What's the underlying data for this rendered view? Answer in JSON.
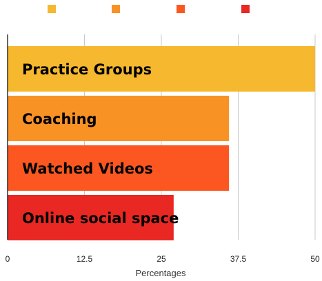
{
  "chart_data": {
    "type": "bar",
    "orientation": "horizontal",
    "categories": [
      "Practice Groups",
      "Coaching",
      "Watched Videos",
      "Online social space"
    ],
    "values": [
      50,
      36,
      36,
      27
    ],
    "colors": [
      "#F5B82E",
      "#F99225",
      "#FC5721",
      "#EA2823"
    ],
    "xlabel": "Percentages",
    "ylabel": "",
    "xlim": [
      0,
      50
    ],
    "xticks": [
      0,
      12.5,
      25,
      37.5,
      50
    ],
    "xtick_labels": [
      "0",
      "12.5",
      "25",
      "37.5",
      "50"
    ],
    "grid": "vertical",
    "legend": {
      "placement": "top",
      "labels_visible": false
    }
  }
}
